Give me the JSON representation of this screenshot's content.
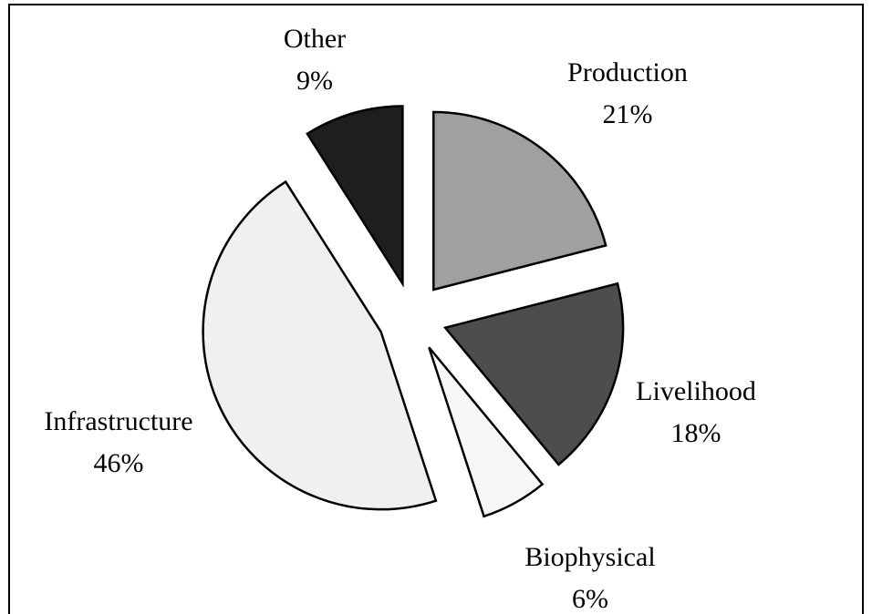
{
  "chart_data": {
    "type": "pie",
    "categories": [
      "Production",
      "Livelihood",
      "Biophysical",
      "Infrastructure",
      "Other"
    ],
    "values": [
      21,
      18,
      6,
      46,
      9
    ],
    "value_labels": [
      "21%",
      "18%",
      "6%",
      "46%",
      "9%"
    ],
    "colors": [
      "#a0a0a0",
      "#4d4d4d",
      "#f7f7f7",
      "#f0f0f0",
      "#1e1e1e"
    ]
  }
}
